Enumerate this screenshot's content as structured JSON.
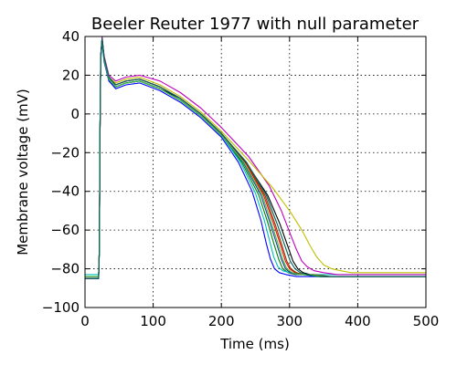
{
  "chart_data": {
    "type": "line",
    "title": "Beeler Reuter 1977 with null parameter",
    "xlabel": "Time (ms)",
    "ylabel": "Membrane voltage (mV)",
    "xlim": [
      0,
      500
    ],
    "ylim": [
      -100,
      40
    ],
    "xticks": [
      0,
      100,
      200,
      300,
      400,
      500
    ],
    "yticks": [
      -100,
      -80,
      -60,
      -40,
      -20,
      0,
      20,
      40
    ],
    "xtick_labels": [
      "0",
      "100",
      "200",
      "300",
      "400",
      "500"
    ],
    "ytick_labels": [
      "−100",
      "−80",
      "−60",
      "−40",
      "−20",
      "0",
      "20",
      "40"
    ],
    "grid": true,
    "legend": "none",
    "series": [
      {
        "color": "#0000ff",
        "x": [
          0,
          20,
          21,
          22,
          23,
          25,
          28,
          35,
          45,
          60,
          80,
          110,
          140,
          170,
          200,
          225,
          245,
          258,
          266,
          272,
          278,
          285,
          295,
          310,
          340,
          400,
          500
        ],
        "y": [
          -85,
          -85,
          -70,
          -10,
          28,
          37,
          27,
          17,
          13,
          15,
          16,
          12,
          6,
          -2,
          -12,
          -25,
          -40,
          -55,
          -67,
          -75,
          -80,
          -82,
          -83,
          -84,
          -84,
          -84,
          -84
        ]
      },
      {
        "color": "#008000",
        "x": [
          0,
          20,
          21,
          22,
          23,
          25,
          28,
          35,
          45,
          60,
          80,
          110,
          140,
          170,
          200,
          230,
          255,
          268,
          277,
          284,
          290,
          298,
          308,
          320,
          345,
          400,
          500
        ],
        "y": [
          -84,
          -84,
          -70,
          -10,
          30,
          38,
          28,
          18,
          14,
          16,
          17,
          13,
          7,
          -1,
          -11,
          -25,
          -42,
          -56,
          -67,
          -75,
          -80,
          -82,
          -83,
          -83,
          -84,
          -84,
          -84
        ]
      },
      {
        "color": "#ff0000",
        "x": [
          0,
          20,
          21,
          22,
          23,
          25,
          28,
          35,
          45,
          60,
          80,
          110,
          140,
          170,
          200,
          235,
          262,
          277,
          287,
          294,
          300,
          308,
          318,
          330,
          355,
          400,
          500
        ],
        "y": [
          -84,
          -84,
          -70,
          -10,
          30,
          39,
          29,
          19,
          15,
          17,
          18,
          14,
          8,
          0,
          -10,
          -25,
          -42,
          -57,
          -68,
          -76,
          -80,
          -82,
          -83,
          -83,
          -84,
          -84,
          -84
        ]
      },
      {
        "color": "#00bfbf",
        "x": [
          0,
          20,
          21,
          22,
          23,
          25,
          28,
          35,
          45,
          60,
          80,
          110,
          140,
          170,
          200,
          228,
          250,
          263,
          271,
          277,
          283,
          290,
          300,
          315,
          340,
          400,
          500
        ],
        "y": [
          -83,
          -83,
          -70,
          -10,
          29,
          38,
          28,
          18,
          14,
          16,
          17,
          13,
          7,
          -1,
          -11,
          -25,
          -41,
          -55,
          -66,
          -74,
          -79,
          -81,
          -82,
          -83,
          -83,
          -83,
          -83
        ]
      },
      {
        "color": "#bf00bf",
        "x": [
          0,
          20,
          21,
          22,
          23,
          25,
          28,
          35,
          45,
          60,
          80,
          110,
          140,
          170,
          200,
          240,
          270,
          288,
          300,
          310,
          318,
          326,
          336,
          350,
          370,
          420,
          500
        ],
        "y": [
          -84,
          -84,
          -70,
          -10,
          30,
          40,
          30,
          20,
          17,
          19,
          20,
          17,
          11,
          3,
          -7,
          -22,
          -37,
          -50,
          -61,
          -70,
          -76,
          -79,
          -81,
          -82,
          -83,
          -83,
          -83
        ]
      },
      {
        "color": "#bfbf00",
        "x": [
          0,
          20,
          21,
          22,
          23,
          25,
          28,
          35,
          45,
          60,
          80,
          110,
          140,
          170,
          200,
          240,
          275,
          300,
          318,
          330,
          340,
          350,
          362,
          375,
          390,
          430,
          500
        ],
        "y": [
          -84,
          -84,
          -70,
          -10,
          30,
          39,
          29,
          19,
          16,
          18,
          19,
          15,
          9,
          1,
          -9,
          -24,
          -38,
          -50,
          -60,
          -68,
          -74,
          -78,
          -80,
          -81,
          -82,
          -82,
          -82
        ]
      },
      {
        "color": "#000000",
        "x": [
          0,
          20,
          21,
          22,
          23,
          25,
          28,
          35,
          45,
          60,
          80,
          110,
          140,
          170,
          200,
          238,
          268,
          286,
          297,
          305,
          312,
          320,
          330,
          345,
          370,
          420,
          500
        ],
        "y": [
          -85,
          -85,
          -70,
          -10,
          30,
          39,
          29,
          18,
          14,
          16,
          17,
          13,
          8,
          0,
          -10,
          -26,
          -42,
          -57,
          -68,
          -76,
          -80,
          -82,
          -83,
          -84,
          -84,
          -84,
          -84
        ]
      },
      {
        "color": "#1f3f9f",
        "x": [
          0,
          20,
          21,
          22,
          23,
          25,
          28,
          35,
          45,
          60,
          80,
          110,
          140,
          170,
          200,
          232,
          258,
          272,
          281,
          288,
          294,
          301,
          311,
          325,
          350,
          400,
          500
        ],
        "y": [
          -84,
          -84,
          -70,
          -10,
          29,
          38,
          28,
          18,
          14,
          16,
          17,
          13,
          7,
          -1,
          -11,
          -25,
          -42,
          -57,
          -67,
          -75,
          -80,
          -82,
          -83,
          -83,
          -84,
          -84,
          -84
        ]
      },
      {
        "color": "#7f3f00",
        "x": [
          0,
          20,
          21,
          22,
          23,
          25,
          28,
          35,
          45,
          60,
          80,
          110,
          140,
          170,
          200,
          236,
          264,
          279,
          289,
          296,
          302,
          310,
          320,
          335,
          360,
          410,
          500
        ],
        "y": [
          -84,
          -84,
          -70,
          -10,
          30,
          39,
          29,
          19,
          15,
          17,
          18,
          14,
          8,
          0,
          -10,
          -25,
          -42,
          -57,
          -68,
          -76,
          -80,
          -82,
          -83,
          -83,
          -84,
          -84,
          -84
        ]
      },
      {
        "color": "#3fbf3f",
        "x": [
          0,
          20,
          21,
          22,
          23,
          25,
          28,
          35,
          45,
          60,
          80,
          110,
          140,
          170,
          200,
          233,
          260,
          274,
          283,
          290,
          296,
          304,
          314,
          328,
          352,
          400,
          500
        ],
        "y": [
          -84,
          -84,
          -70,
          -10,
          30,
          38,
          28,
          18,
          14,
          16,
          17,
          13,
          7,
          -1,
          -11,
          -25,
          -42,
          -57,
          -67,
          -75,
          -80,
          -82,
          -83,
          -83,
          -84,
          -84,
          -84
        ]
      },
      {
        "color": "#006060",
        "x": [
          0,
          20,
          21,
          22,
          23,
          25,
          28,
          35,
          45,
          60,
          80,
          110,
          140,
          170,
          200,
          237,
          266,
          282,
          293,
          301,
          308,
          316,
          326,
          340,
          365,
          420,
          500
        ],
        "y": [
          -85,
          -85,
          -70,
          -10,
          30,
          39,
          29,
          19,
          15,
          17,
          18,
          14,
          8,
          0,
          -10,
          -25,
          -42,
          -57,
          -68,
          -76,
          -80,
          -82,
          -83,
          -84,
          -84,
          -84,
          -84
        ]
      }
    ]
  }
}
